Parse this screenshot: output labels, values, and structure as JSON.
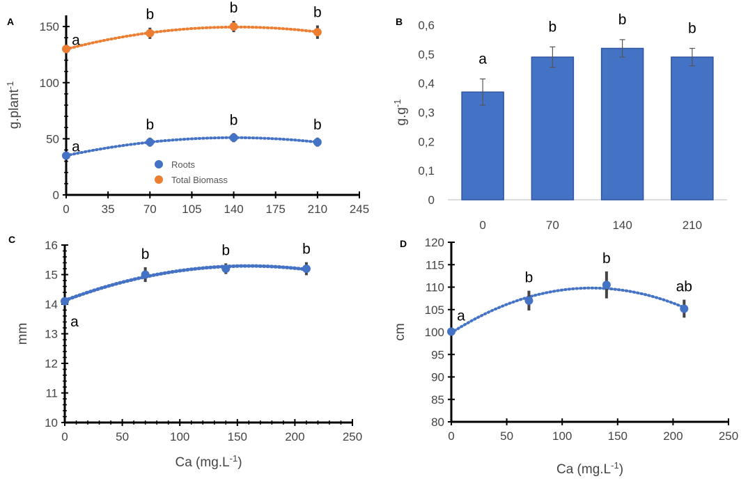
{
  "chart_data": [
    {
      "panel": "A",
      "type": "scatter",
      "ylabel": "g.plant",
      "ylabel_sup": "-1",
      "x_ticks": [
        "0",
        "35",
        "70",
        "105",
        "140",
        "175",
        "210",
        "245"
      ],
      "y_ticks": [
        "0",
        "50",
        "100",
        "150"
      ],
      "xlim": [
        0,
        245
      ],
      "ylim": [
        0,
        160
      ],
      "x": [
        0,
        70,
        140,
        210
      ],
      "series": [
        {
          "name": "Roots",
          "color": "#4472C4",
          "values": [
            35,
            47,
            51,
            47
          ],
          "error": [
            3,
            4,
            4,
            4
          ],
          "letters": [
            "a",
            "b",
            "b",
            "b"
          ]
        },
        {
          "name": "Total Biomass",
          "color": "#ED7D31",
          "values": [
            130,
            144,
            150,
            145
          ],
          "error": [
            4,
            5,
            5,
            6
          ],
          "letters": [
            "a",
            "b",
            "b",
            "b"
          ]
        }
      ],
      "trendline": "dotted quadratic"
    },
    {
      "panel": "B",
      "type": "bar",
      "ylabel": "g.g",
      "ylabel_sup": "-1",
      "categories": [
        "0",
        "70",
        "140",
        "210"
      ],
      "values": [
        0.37,
        0.49,
        0.52,
        0.49
      ],
      "error": [
        0.045,
        0.035,
        0.03,
        0.03
      ],
      "letters": [
        "a",
        "b",
        "b",
        "b"
      ],
      "y_ticks": [
        "0",
        "0,1",
        "0,2",
        "0,3",
        "0,4",
        "0,5",
        "0,6"
      ],
      "ylim": [
        0,
        0.6
      ],
      "color": "#4472C4"
    },
    {
      "panel": "C",
      "type": "scatter",
      "ylabel": "mm",
      "xlabel": "Ca (mg.L",
      "xlabel_sup": "-1",
      "xlabel_end": ")",
      "x_ticks": [
        "0",
        "50",
        "100",
        "150",
        "200",
        "250"
      ],
      "y_ticks": [
        "10",
        "11",
        "12",
        "13",
        "14",
        "15",
        "16"
      ],
      "xlim": [
        0,
        250
      ],
      "ylim": [
        10,
        16
      ],
      "x": [
        0,
        70,
        140,
        210
      ],
      "values": [
        14.1,
        15.0,
        15.2,
        15.2
      ],
      "error": [
        0.05,
        0.25,
        0.18,
        0.22
      ],
      "letters": [
        "a",
        "b",
        "b",
        "b"
      ],
      "color": "#4472C4",
      "trendline": "dotted quadratic"
    },
    {
      "panel": "D",
      "type": "scatter",
      "ylabel": "cm",
      "xlabel": "Ca (mg.L",
      "xlabel_sup": "-1",
      "xlabel_end": ")",
      "x_ticks": [
        "0",
        "50",
        "100",
        "150",
        "200",
        "250"
      ],
      "y_ticks": [
        "80",
        "85",
        "90",
        "95",
        "100",
        "105",
        "110",
        "115",
        "120"
      ],
      "xlim": [
        0,
        250
      ],
      "ylim": [
        80,
        120
      ],
      "x": [
        0,
        70,
        140,
        210
      ],
      "values": [
        100.1,
        107.0,
        110.5,
        105.2
      ],
      "error": [
        0.6,
        2.2,
        3.0,
        2.0
      ],
      "letters": [
        "a",
        "b",
        "b",
        "ab"
      ],
      "color": "#4472C4",
      "trendline": "dotted quadratic"
    }
  ]
}
